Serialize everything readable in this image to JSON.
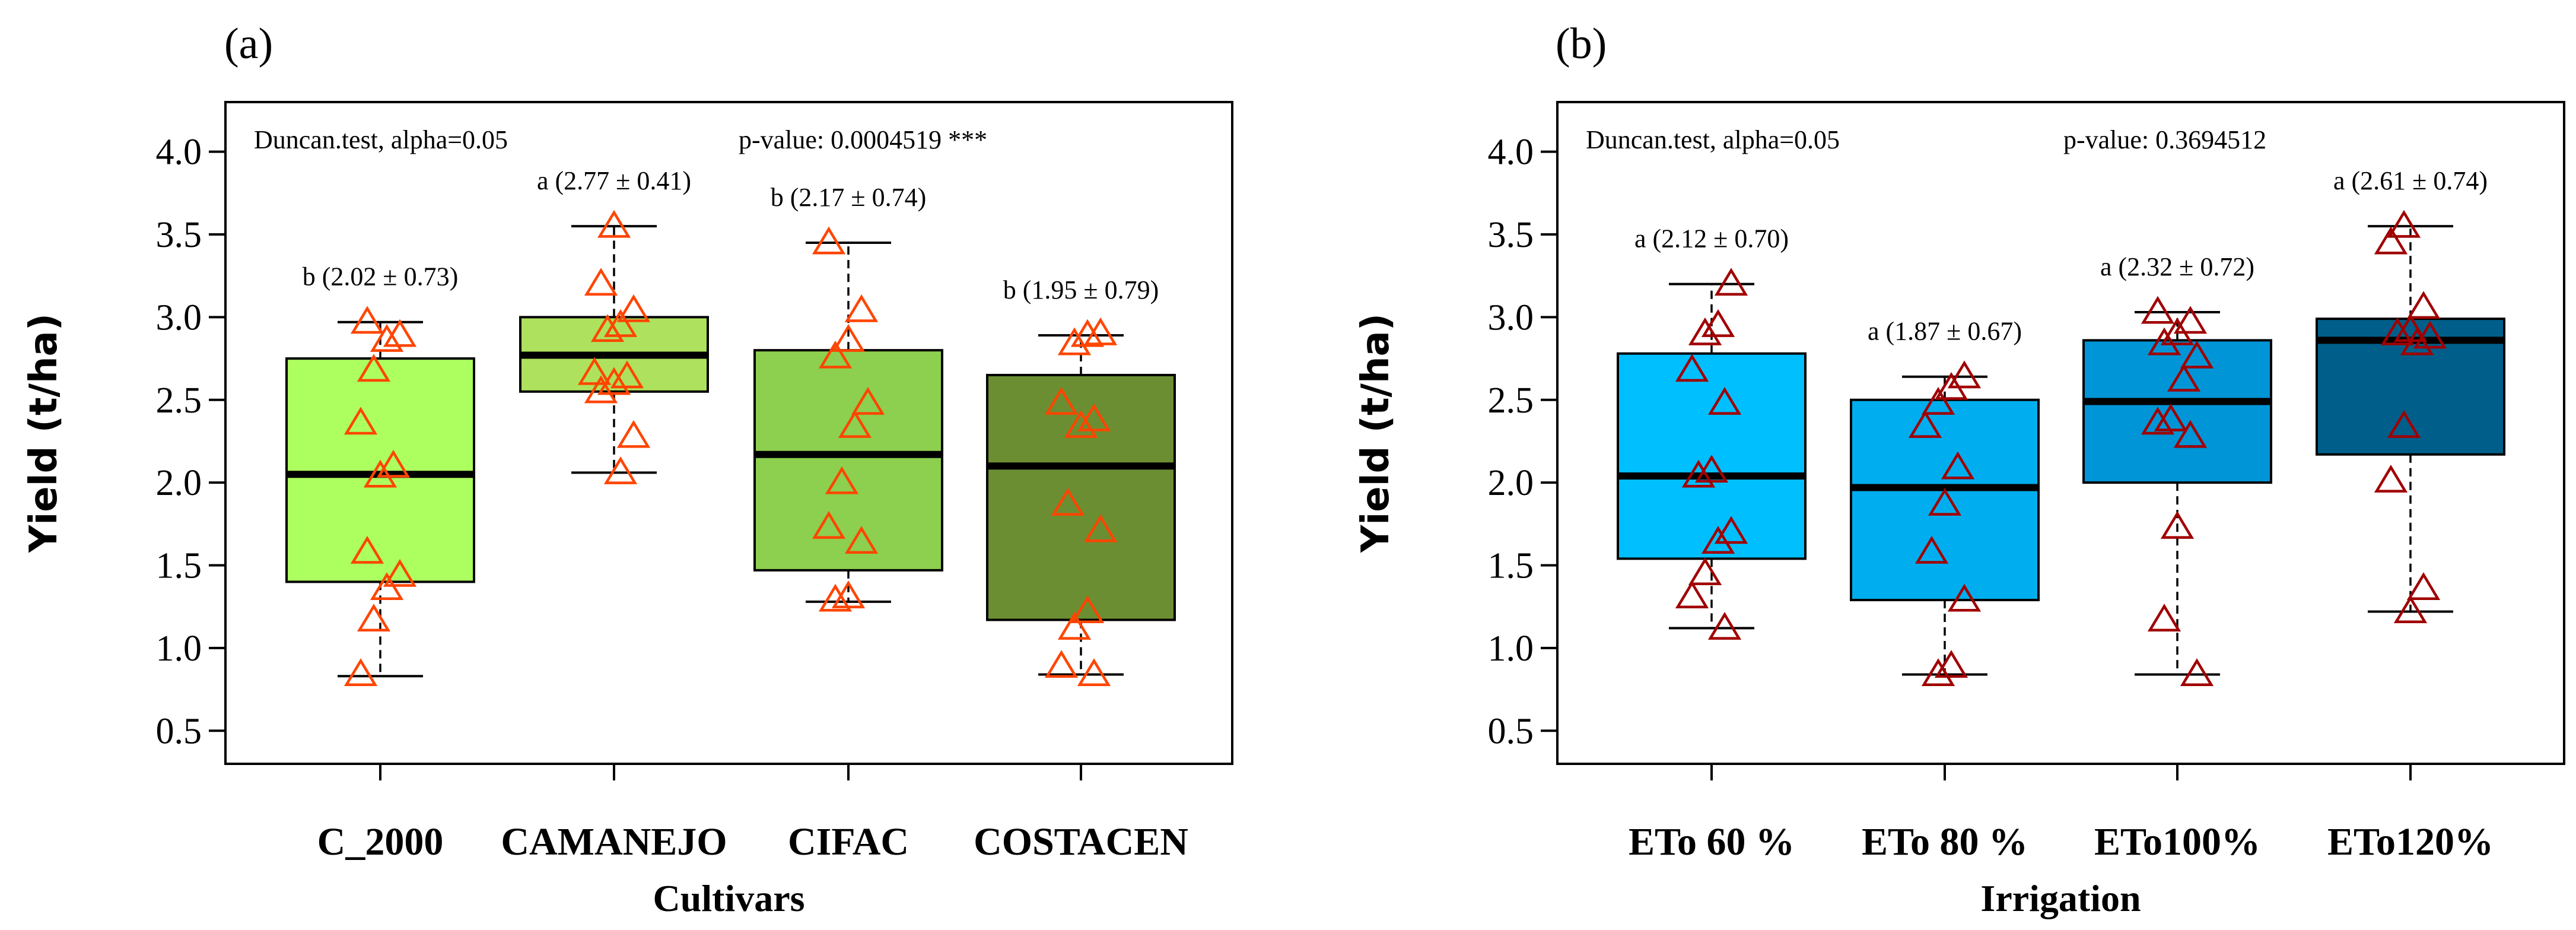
{
  "chart_data": [
    {
      "type": "box",
      "panel_label": "(a)",
      "xlabel": "Cultivars",
      "ylabel": "Yield (t/ha)",
      "ylim": [
        0.3,
        4.3
      ],
      "yticks": [
        "0.5",
        "1.0",
        "1.5",
        "2.0",
        "2.5",
        "3.0",
        "3.5",
        "4.0"
      ],
      "test_label": "Duncan.test, alpha=0.05",
      "p_value_label": "p-value: 0.0004519 ***",
      "marker_color": "#FF4500",
      "categories": [
        "C_2000",
        "CAMANEJO",
        "CIFAC",
        "COSTACEN"
      ],
      "boxes": [
        {
          "q1": 1.4,
          "median": 2.05,
          "q3": 2.75,
          "whisker_low": 0.83,
          "whisker_high": 2.97,
          "fill": "#ADFF5F",
          "label": "b (2.02 ± 0.73)",
          "points": [
            0.84,
            1.17,
            1.36,
            1.44,
            1.58,
            2.04,
            2.1,
            2.36,
            2.68,
            2.86,
            2.89,
            2.97
          ]
        },
        {
          "q1": 2.55,
          "median": 2.77,
          "q3": 3.0,
          "whisker_low": 2.06,
          "whisker_high": 3.55,
          "fill": "#AEE25E",
          "label": "a (2.77 ± 0.41)",
          "points": [
            2.06,
            2.28,
            2.55,
            2.6,
            2.64,
            2.66,
            2.92,
            2.95,
            3.04,
            3.2,
            3.55
          ]
        },
        {
          "q1": 1.47,
          "median": 2.17,
          "q3": 2.8,
          "whisker_low": 1.28,
          "whisker_high": 3.45,
          "fill": "#8DCF4F",
          "label": "b (2.17 ± 0.74)",
          "points": [
            1.29,
            1.31,
            1.64,
            1.73,
            2.0,
            2.34,
            2.48,
            2.76,
            2.86,
            3.04,
            3.45
          ]
        },
        {
          "q1": 1.17,
          "median": 2.1,
          "q3": 2.65,
          "whisker_low": 0.84,
          "whisker_high": 2.89,
          "fill": "#6B8E33",
          "label": "b (1.95 ± 0.79)",
          "points": [
            0.84,
            0.89,
            1.12,
            1.22,
            1.71,
            1.87,
            2.34,
            2.38,
            2.48,
            2.84,
            2.89,
            2.9
          ]
        }
      ]
    },
    {
      "type": "box",
      "panel_label": "(b)",
      "xlabel": "Irrigation",
      "ylabel": "Yield (t/ha)",
      "ylim": [
        0.3,
        4.3
      ],
      "yticks": [
        "0.5",
        "1.0",
        "1.5",
        "2.0",
        "2.5",
        "3.0",
        "3.5",
        "4.0"
      ],
      "test_label": "Duncan.test, alpha=0.05",
      "p_value_label": "p-value: 0.3694512",
      "marker_color": "#A00000",
      "categories": [
        "ETo 60 %",
        "ETo 80 %",
        "ETo100%",
        "ETo120%"
      ],
      "boxes": [
        {
          "q1": 1.54,
          "median": 2.04,
          "q3": 2.78,
          "whisker_low": 1.12,
          "whisker_high": 3.2,
          "fill": "#00BFFF",
          "label": "a (2.12 ± 0.70)",
          "points": [
            1.12,
            1.31,
            1.45,
            1.64,
            1.7,
            2.04,
            2.07,
            2.48,
            2.68,
            2.9,
            2.95,
            3.2
          ]
        },
        {
          "q1": 1.29,
          "median": 1.97,
          "q3": 2.5,
          "whisker_low": 0.84,
          "whisker_high": 2.64,
          "fill": "#00AEEF",
          "label": "a (1.87 ± 0.67)",
          "points": [
            0.84,
            0.89,
            1.29,
            1.58,
            1.87,
            2.09,
            2.34,
            2.48,
            2.57,
            2.64
          ]
        },
        {
          "q1": 2.0,
          "median": 2.49,
          "q3": 2.86,
          "whisker_low": 0.84,
          "whisker_high": 3.03,
          "fill": "#0095D6",
          "label": "a (2.32 ± 0.72)",
          "points": [
            0.84,
            1.17,
            1.73,
            2.28,
            2.36,
            2.38,
            2.62,
            2.76,
            2.84,
            2.9,
            2.97,
            3.03
          ]
        },
        {
          "q1": 2.17,
          "median": 2.86,
          "q3": 2.99,
          "whisker_low": 1.22,
          "whisker_high": 3.55,
          "fill": "#005F8A",
          "label": "a (2.61 ± 0.74)",
          "points": [
            1.22,
            1.36,
            2.01,
            2.34,
            2.84,
            2.88,
            2.9,
            2.92,
            3.06,
            3.45,
            3.55
          ]
        }
      ]
    }
  ]
}
